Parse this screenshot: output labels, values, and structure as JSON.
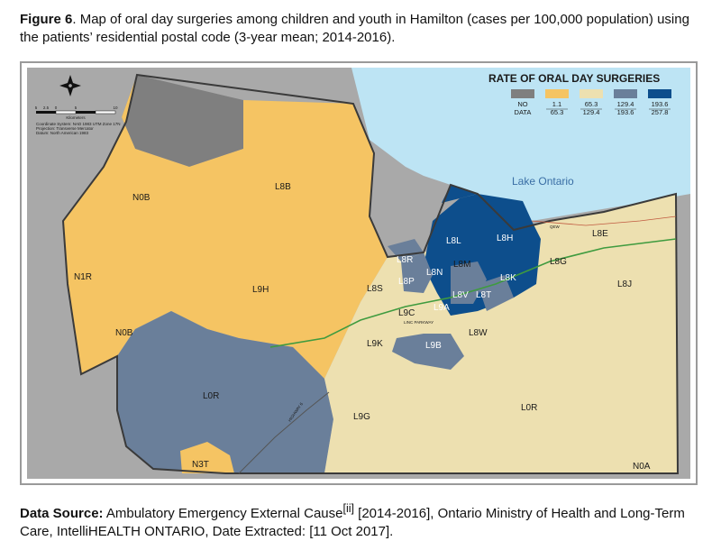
{
  "figure": {
    "label": "Figure 6",
    "title": ". Map of oral day surgeries among children and youth in Hamilton (cases per 100,000 population) using the patients’ residential postal code (3-year mean; 2014-2016)."
  },
  "legend": {
    "title": "RATE OF ORAL DAY SURGERIES",
    "classes": [
      {
        "line1": "NO",
        "line2": "DATA",
        "color": "#7f7f7f"
      },
      {
        "line1": "1.1",
        "line2": "65.3",
        "color": "#f5c463"
      },
      {
        "line1": "65.3",
        "line2": "129.4",
        "color": "#ede0b0"
      },
      {
        "line1": "129.4",
        "line2": "193.6",
        "color": "#6a7f9a"
      },
      {
        "line1": "193.6",
        "line2": "257.8",
        "color": "#0d4e8c"
      }
    ]
  },
  "map_labels": {
    "lake": "Lake Ontario",
    "n0b_north": "N0B",
    "l8b": "L8B",
    "n1r": "N1R",
    "l9h": "L9H",
    "n0b_south": "N0B",
    "l0r_west": "L0R",
    "n3t": "N3T",
    "l9g": "L9G",
    "l0r_east": "L0R",
    "n0a": "N0A",
    "l8e": "L8E",
    "l8g": "L8G",
    "l8j": "L8J",
    "l8h": "L8H",
    "l8l": "L8L",
    "l8r": "L8R",
    "l8m": "L8M",
    "l8n": "L8N",
    "l8k": "L8K",
    "l8p": "L8P",
    "l8s": "L8S",
    "l8v": "L8V",
    "l8t": "L8T",
    "l9a": "L9A",
    "l9c": "L9C",
    "l9k": "L9K",
    "l9b": "L9B",
    "l8w": "L8W",
    "qew": "QEW",
    "linc": "LINC PARKWAY",
    "hwy6": "HIGHWAY 6"
  },
  "map_info": {
    "scale_unit": "Kilometers",
    "scale_ticks": [
      "5",
      "2.5",
      "0",
      "5",
      "10"
    ],
    "coord_line1": "Coordinate System: NAD 1983 UTM Zone 17N",
    "coord_line2": "Projection: Transverse Mercator",
    "coord_line3": "Datum: North American 1983"
  },
  "source": {
    "label": "Data Source:",
    "text1": " Ambulatory Emergency External Cause",
    "sup": "[ii]",
    "text2": " [2014-2016], Ontario Ministry of Health and Long-Term Care, IntelliHEALTH ONTARIO, Date Extracted: [11 Oct 2017]."
  }
}
